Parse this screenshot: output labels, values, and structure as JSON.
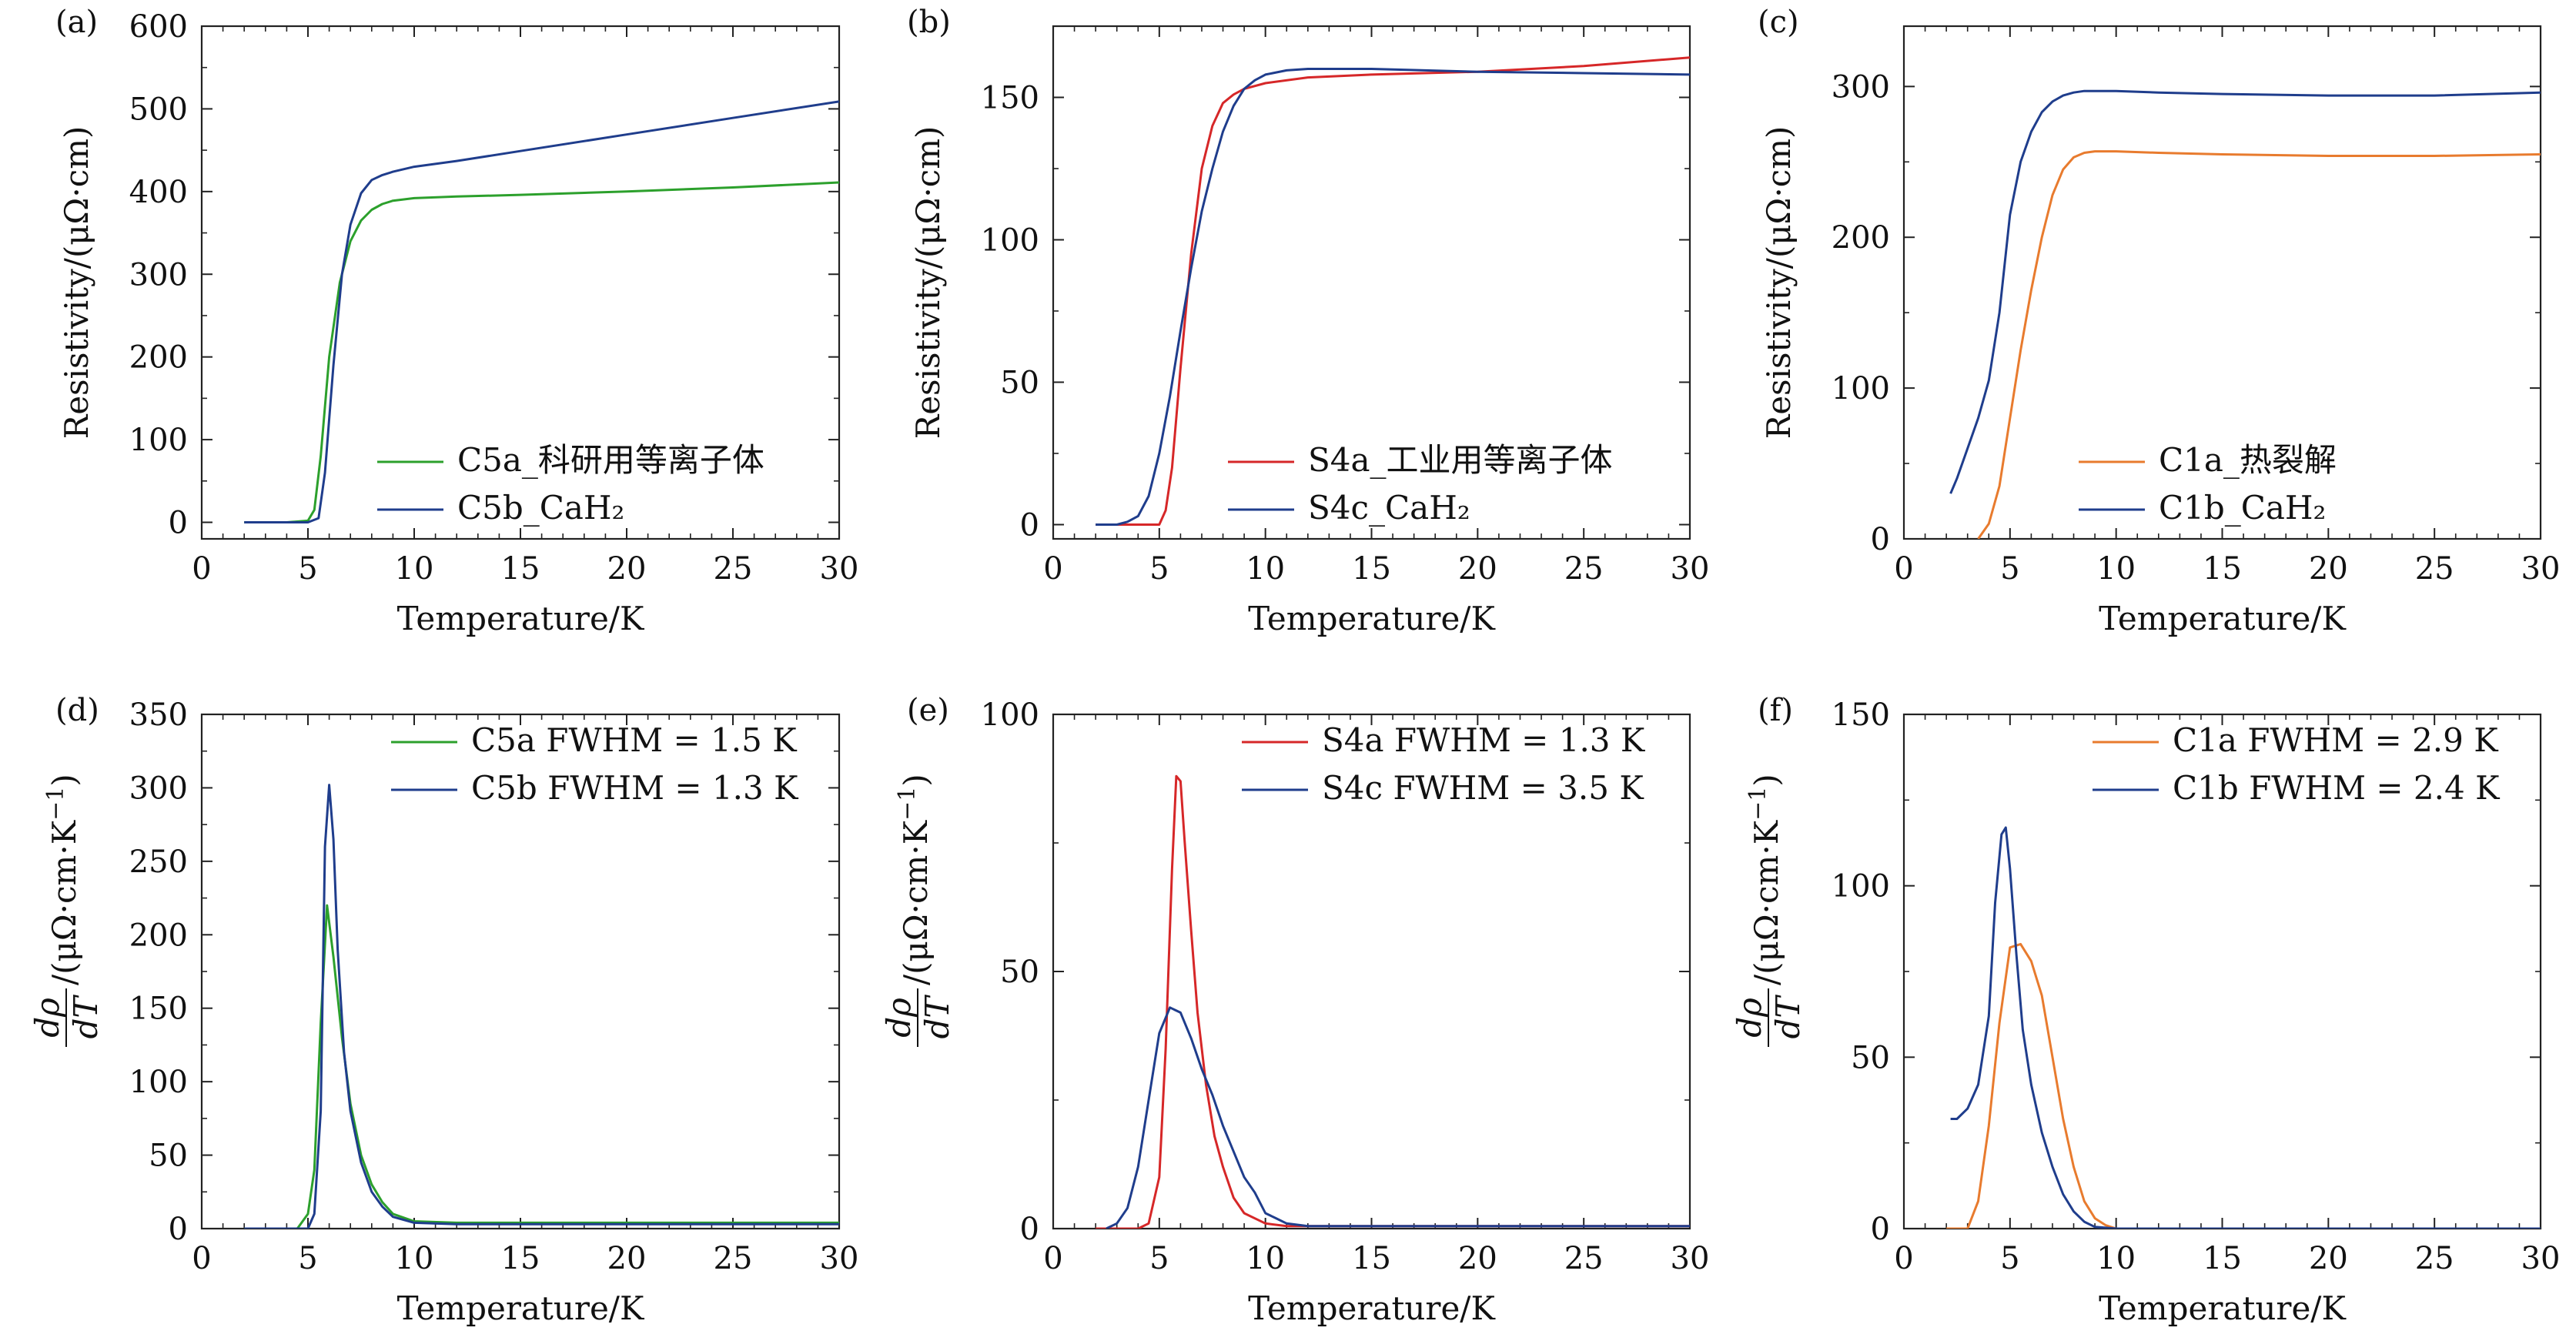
{
  "chart_data": [
    {
      "type": "line",
      "panel_label": "(a)",
      "xlabel": "Temperature/K",
      "ylabel": "Resistivity/(μΩ·cm)",
      "xlim": [
        0,
        30
      ],
      "ylim": [
        -20,
        600
      ],
      "xticks": [
        0,
        5,
        10,
        15,
        20,
        25,
        30
      ],
      "yticks": [
        0,
        100,
        200,
        300,
        400,
        500,
        600
      ],
      "legend_position": "lower-right",
      "series": [
        {
          "name": "C5a_科研用等离子体",
          "color": "#2ca02c",
          "x": [
            2,
            4,
            5,
            5.3,
            5.6,
            6,
            6.5,
            7,
            7.5,
            8,
            8.5,
            9,
            10,
            12,
            15,
            20,
            25,
            30
          ],
          "y": [
            0,
            0,
            2,
            15,
            80,
            200,
            290,
            340,
            365,
            378,
            385,
            389,
            392,
            394,
            396,
            400,
            405,
            411
          ]
        },
        {
          "name": "C5b_CaH₂",
          "color": "#1f3d8c",
          "x": [
            2,
            4,
            5,
            5.5,
            5.8,
            6.2,
            6.6,
            7,
            7.5,
            8,
            8.5,
            9,
            10,
            12,
            15,
            20,
            25,
            30
          ],
          "y": [
            0,
            0,
            0,
            5,
            60,
            190,
            300,
            360,
            398,
            414,
            420,
            424,
            430,
            437,
            449,
            469,
            489,
            509
          ]
        }
      ]
    },
    {
      "type": "line",
      "panel_label": "(b)",
      "xlabel": "Temperature/K",
      "ylabel": "Resistivity/(μΩ·cm)",
      "xlim": [
        0,
        30
      ],
      "ylim": [
        -5,
        175
      ],
      "xticks": [
        0,
        5,
        10,
        15,
        20,
        25,
        30
      ],
      "yticks": [
        0,
        50,
        100,
        150
      ],
      "legend_position": "lower-right",
      "series": [
        {
          "name": "S4a_工业用等离子体",
          "color": "#d62728",
          "x": [
            2,
            4,
            5,
            5.3,
            5.6,
            6,
            6.5,
            7,
            7.5,
            8,
            8.5,
            9,
            10,
            12,
            15,
            20,
            25,
            30
          ],
          "y": [
            0,
            0,
            0,
            5,
            20,
            55,
            95,
            125,
            140,
            148,
            151,
            153,
            155,
            157,
            158,
            159,
            161,
            164
          ]
        },
        {
          "name": "S4c_CaH₂",
          "color": "#1f3d8c",
          "x": [
            2,
            3,
            3.5,
            4,
            4.5,
            5,
            5.5,
            6,
            6.5,
            7,
            7.5,
            8,
            8.5,
            9,
            9.5,
            10,
            11,
            12,
            15,
            20,
            25,
            30
          ],
          "y": [
            0,
            0,
            1,
            3,
            10,
            25,
            45,
            68,
            90,
            110,
            125,
            138,
            147,
            153,
            156,
            158,
            159.5,
            160,
            160,
            159,
            158.5,
            158
          ]
        }
      ]
    },
    {
      "type": "line",
      "panel_label": "(c)",
      "xlabel": "Temperature/K",
      "ylabel": "Resistivity/(μΩ·cm)",
      "xlim": [
        0,
        30
      ],
      "ylim": [
        0,
        340
      ],
      "xticks": [
        0,
        5,
        10,
        15,
        20,
        25,
        30
      ],
      "yticks": [
        0,
        100,
        200,
        300
      ],
      "legend_position": "lower-right",
      "series": [
        {
          "name": "C1a_热裂解",
          "color": "#e87b2e",
          "x": [
            3.5,
            4,
            4.5,
            5,
            5.5,
            6,
            6.5,
            7,
            7.5,
            8,
            8.5,
            9,
            10,
            12,
            15,
            20,
            25,
            30
          ],
          "y": [
            0,
            10,
            35,
            80,
            125,
            165,
            200,
            228,
            245,
            253,
            256,
            257,
            257,
            256,
            255,
            254,
            254,
            255
          ]
        },
        {
          "name": "C1b_CaH₂",
          "color": "#1f3d8c",
          "x": [
            2.2,
            2.5,
            3,
            3.5,
            4,
            4.5,
            5,
            5.5,
            6,
            6.5,
            7,
            7.5,
            8,
            8.5,
            9,
            10,
            12,
            15,
            20,
            25,
            30
          ],
          "y": [
            30,
            40,
            60,
            80,
            105,
            150,
            215,
            250,
            270,
            283,
            290,
            294,
            296,
            297,
            297,
            297,
            296,
            295,
            294,
            294,
            296
          ]
        }
      ]
    },
    {
      "type": "line",
      "panel_label": "(d)",
      "xlabel": "Temperature/K",
      "ylabel_parts": {
        "num": "dρ",
        "den": "dT",
        "unit": "/(μΩ·cm·K",
        "exp": "−1",
        "close": ")"
      },
      "xlim": [
        0,
        30
      ],
      "ylim": [
        0,
        350
      ],
      "xticks": [
        0,
        5,
        10,
        15,
        20,
        25,
        30
      ],
      "yticks": [
        0,
        50,
        100,
        150,
        200,
        250,
        300,
        350
      ],
      "legend_position": "top-right",
      "series": [
        {
          "name": "C5a",
          "legend_label": "C5a FWHM = 1.5 K",
          "color": "#2ca02c",
          "x": [
            2,
            4.5,
            5,
            5.3,
            5.6,
            5.9,
            6.2,
            6.6,
            7,
            7.5,
            8,
            8.5,
            9,
            10,
            12,
            15,
            20,
            25,
            30
          ],
          "y": [
            0,
            0,
            10,
            40,
            140,
            220,
            185,
            130,
            85,
            50,
            30,
            18,
            10,
            5,
            4,
            4,
            4,
            4,
            4
          ]
        },
        {
          "name": "C5b",
          "legend_label": "C5b FWHM = 1.3 K",
          "color": "#1f3d8c",
          "x": [
            2,
            5,
            5.3,
            5.6,
            5.8,
            6,
            6.2,
            6.4,
            6.7,
            7,
            7.5,
            8,
            8.5,
            9,
            10,
            12,
            15,
            20,
            25,
            30
          ],
          "y": [
            0,
            0,
            10,
            80,
            260,
            302,
            265,
            190,
            120,
            80,
            45,
            25,
            15,
            8,
            4,
            3,
            3,
            3,
            3,
            3
          ]
        }
      ]
    },
    {
      "type": "line",
      "panel_label": "(e)",
      "xlabel": "Temperature/K",
      "ylabel_parts": {
        "num": "dρ",
        "den": "dT",
        "unit": "/(μΩ·cm·K",
        "exp": "−1",
        "close": ")"
      },
      "xlim": [
        0,
        30
      ],
      "ylim": [
        0,
        100
      ],
      "xticks": [
        0,
        5,
        10,
        15,
        20,
        25,
        30
      ],
      "yticks": [
        0,
        50,
        100
      ],
      "legend_position": "top-right",
      "series": [
        {
          "name": "S4a",
          "legend_label": "S4a FWHM = 1.3 K",
          "color": "#d62728",
          "x": [
            2,
            4,
            4.5,
            5,
            5.3,
            5.6,
            5.8,
            6,
            6.2,
            6.5,
            6.8,
            7.2,
            7.6,
            8,
            8.5,
            9,
            10,
            11,
            12,
            15,
            20,
            25,
            30
          ],
          "y": [
            0,
            0,
            1,
            10,
            35,
            70,
            88,
            87,
            75,
            58,
            42,
            28,
            18,
            12,
            6,
            3,
            1,
            0.5,
            0.5,
            0.5,
            0.5,
            0.5,
            0.5
          ]
        },
        {
          "name": "S4c",
          "legend_label": "S4c FWHM = 3.5 K",
          "color": "#1f3d8c",
          "x": [
            2.5,
            3,
            3.5,
            4,
            4.5,
            5,
            5.5,
            6,
            6.5,
            7,
            7.5,
            8,
            8.5,
            9,
            9.5,
            10,
            10.5,
            11,
            12,
            15,
            20,
            25,
            30
          ],
          "y": [
            0,
            1,
            4,
            12,
            25,
            38,
            43,
            42,
            37,
            31,
            26,
            20,
            15,
            10,
            7,
            3,
            2,
            1,
            0.5,
            0.5,
            0.5,
            0.5,
            0.5
          ]
        }
      ]
    },
    {
      "type": "line",
      "panel_label": "(f)",
      "xlabel": "Temperature/K",
      "ylabel_parts": {
        "num": "dρ",
        "den": "dT",
        "unit": "/(μΩ·cm·K",
        "exp": "−1",
        "close": ")"
      },
      "xlim": [
        0,
        30
      ],
      "ylim": [
        0,
        150
      ],
      "xticks": [
        0,
        5,
        10,
        15,
        20,
        25,
        30
      ],
      "yticks": [
        0,
        50,
        100,
        150
      ],
      "legend_position": "top-right",
      "series": [
        {
          "name": "C1a",
          "legend_label": "C1a FWHM = 2.9 K",
          "color": "#e87b2e",
          "x": [
            2,
            3,
            3.5,
            4,
            4.5,
            5,
            5.5,
            6,
            6.5,
            7,
            7.5,
            8,
            8.5,
            9,
            9.5,
            10,
            11,
            15,
            20,
            25,
            30
          ],
          "y": [
            0,
            0,
            8,
            30,
            60,
            82,
            83,
            78,
            68,
            50,
            32,
            18,
            8,
            3,
            1,
            0,
            0,
            0,
            0,
            0,
            0
          ]
        },
        {
          "name": "C1b",
          "legend_label": "C1b FWHM = 2.4 K",
          "color": "#1f3d8c",
          "x": [
            2.2,
            2.5,
            3,
            3.5,
            4,
            4.3,
            4.6,
            4.8,
            5,
            5.3,
            5.6,
            6,
            6.5,
            7,
            7.5,
            8,
            8.5,
            9,
            10,
            15,
            20,
            25,
            30
          ],
          "y": [
            32,
            32,
            35,
            42,
            62,
            95,
            115,
            117,
            105,
            80,
            58,
            42,
            28,
            18,
            10,
            5,
            2,
            0.5,
            0,
            0,
            0,
            0,
            0
          ]
        }
      ]
    }
  ]
}
